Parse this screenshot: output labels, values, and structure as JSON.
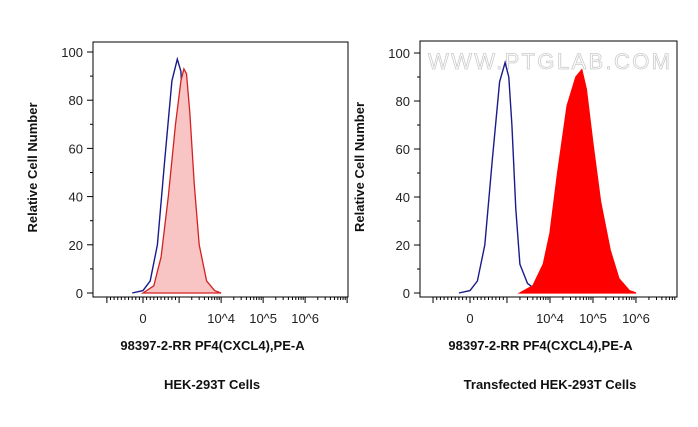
{
  "chart_data": [
    {
      "type": "area",
      "title": "HEK-293T Cells",
      "xlabel": "98397-2-RR PF4(CXCL4),PE-A",
      "ylabel": "Relative Cell Number",
      "xscale": "biexponential",
      "x_tick_labels": [
        "0",
        "10^4",
        "10^5",
        "10^6"
      ],
      "y_tick_labels": [
        "0",
        "20",
        "40",
        "60",
        "80",
        "100"
      ],
      "ylim": [
        0,
        100
      ],
      "series": [
        {
          "style": "line",
          "color": "#1a1a8c",
          "points": [
            [
              -300,
              0
            ],
            [
              0,
              1
            ],
            [
              200,
              5
            ],
            [
              400,
              20
            ],
            [
              600,
              55
            ],
            [
              800,
              88
            ],
            [
              950,
              97
            ],
            [
              1100,
              92
            ],
            [
              1300,
              70
            ],
            [
              1600,
              35
            ],
            [
              2000,
              12
            ],
            [
              3000,
              4
            ],
            [
              5000,
              1
            ],
            [
              8000,
              0
            ]
          ]
        },
        {
          "style": "filled",
          "color": "#d42020",
          "fill": "#f9c4c4",
          "points": [
            [
              0,
              0
            ],
            [
              300,
              3
            ],
            [
              500,
              15
            ],
            [
              700,
              40
            ],
            [
              900,
              70
            ],
            [
              1100,
              88
            ],
            [
              1300,
              93
            ],
            [
              1500,
              91
            ],
            [
              1800,
              75
            ],
            [
              2300,
              45
            ],
            [
              3000,
              20
            ],
            [
              4500,
              5
            ],
            [
              7000,
              1
            ],
            [
              10000,
              0
            ]
          ]
        }
      ]
    },
    {
      "type": "area",
      "title": "Transfected HEK-293T Cells",
      "xlabel": "98397-2-RR PF4(CXCL4),PE-A",
      "ylabel": "Relative Cell Number",
      "xscale": "biexponential",
      "x_tick_labels": [
        "0",
        "10^4",
        "10^5",
        "10^6"
      ],
      "y_tick_labels": [
        "0",
        "20",
        "40",
        "60",
        "80",
        "100"
      ],
      "ylim": [
        0,
        100
      ],
      "watermark": "WWW.PTGLAB.COM",
      "series": [
        {
          "style": "line",
          "color": "#1a1a8c",
          "points": [
            [
              -300,
              0
            ],
            [
              0,
              1
            ],
            [
              200,
              5
            ],
            [
              400,
              20
            ],
            [
              600,
              55
            ],
            [
              800,
              88
            ],
            [
              950,
              96
            ],
            [
              1100,
              90
            ],
            [
              1300,
              70
            ],
            [
              1600,
              35
            ],
            [
              2000,
              12
            ],
            [
              3000,
              4
            ],
            [
              5000,
              1
            ],
            [
              8000,
              0
            ]
          ]
        },
        {
          "style": "filled",
          "color": "#ff0000",
          "fill": "#ff0000",
          "points": [
            [
              2000,
              0
            ],
            [
              4000,
              3
            ],
            [
              7000,
              12
            ],
            [
              10000,
              25
            ],
            [
              15000,
              50
            ],
            [
              25000,
              78
            ],
            [
              40000,
              90
            ],
            [
              55000,
              93
            ],
            [
              70000,
              85
            ],
            [
              100000,
              62
            ],
            [
              150000,
              38
            ],
            [
              250000,
              18
            ],
            [
              400000,
              6
            ],
            [
              700000,
              1
            ],
            [
              1000000,
              0
            ]
          ]
        }
      ]
    }
  ]
}
